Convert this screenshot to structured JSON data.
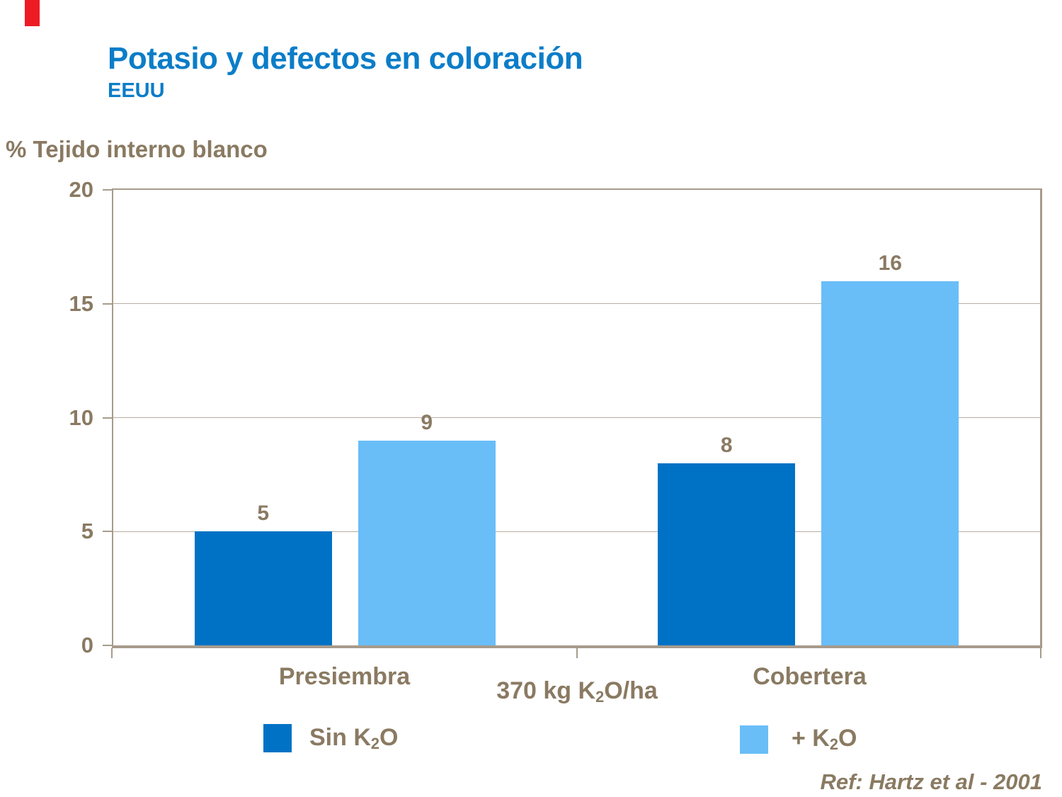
{
  "slide": {
    "title": "Potasio y defectos en coloración",
    "subtitle": "EEUU",
    "reference": "Ref: Hartz et al - 2001"
  },
  "axis_title": "% Tejido interno blanco",
  "x_center_label": {
    "pre": "370 kg K",
    "sub": "2",
    "post": "O/ha"
  },
  "legend": {
    "items": [
      {
        "pre": "Sin K",
        "sub": "2",
        "post": "O",
        "color_key": "series_dark"
      },
      {
        "pre": "+ K",
        "sub": "2",
        "post": "O",
        "color_key": "series_light"
      }
    ]
  },
  "colors": {
    "title_blue": "#0B7DC8",
    "text_brown": "#8A7A62",
    "axis_line": "#A79B8C",
    "gridline": "#B9AEA0",
    "series_dark": "#0072C5",
    "series_light": "#69BEF8",
    "accent_red": "#ED1C24"
  },
  "chart_data": {
    "type": "bar",
    "categories": [
      "Presiembra",
      "Cobertera"
    ],
    "series": [
      {
        "name": "Sin K2O",
        "values": [
          5,
          8
        ],
        "color": "#0072C5"
      },
      {
        "name": "+ K2O",
        "values": [
          9,
          16
        ],
        "color": "#69BEF8"
      }
    ],
    "title": "Potasio y defectos en coloración",
    "subtitle": "EEUU",
    "xlabel": "370 kg K2O/ha",
    "ylabel": "% Tejido interno blanco",
    "ylim": [
      0,
      20
    ],
    "yticks": [
      0,
      5,
      10,
      15,
      20
    ],
    "grid": true,
    "bar_value_labels": true,
    "legend_position": "bottom",
    "reference": "Ref: Hartz et al - 2001"
  }
}
